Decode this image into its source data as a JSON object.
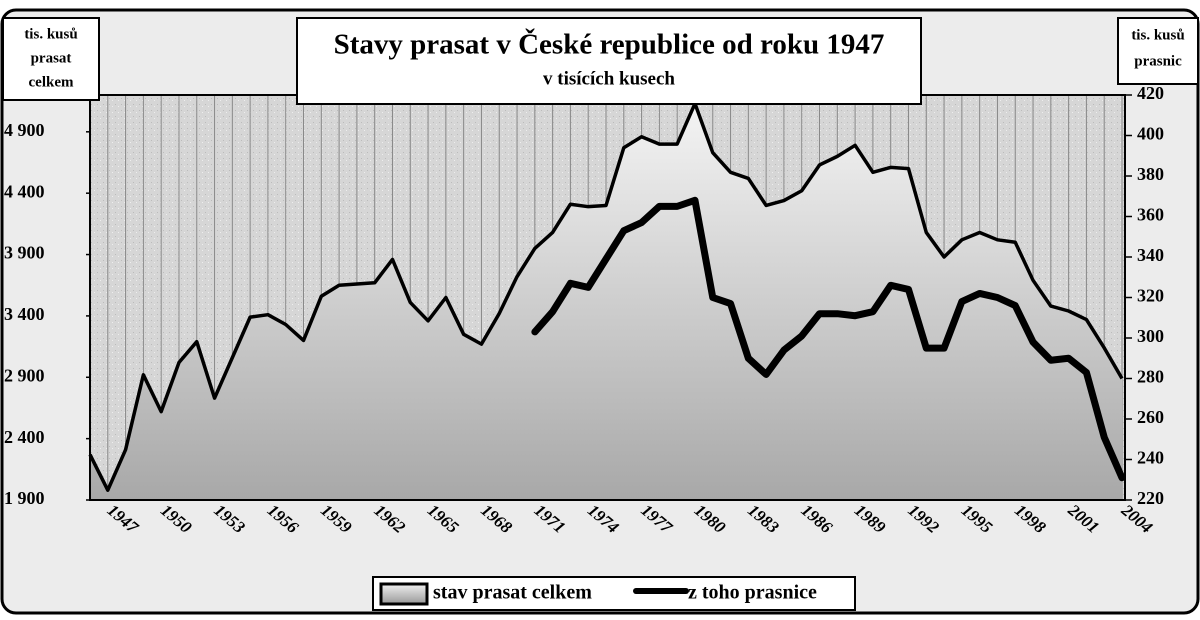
{
  "chart_data": {
    "type": "area_line",
    "title": "Stavy prasat v České republice od roku 1947",
    "subtitle": "v  tisících  kusech",
    "y_axis_label": [
      "tis. kusů",
      "prasat",
      "celkem"
    ],
    "y2_axis_label": [
      "tis. kusů",
      "prasnic"
    ],
    "categories": [
      null,
      "1947",
      null,
      null,
      "1950",
      null,
      null,
      "1953",
      null,
      null,
      "1956",
      null,
      null,
      "1959",
      null,
      null,
      "1962",
      null,
      null,
      "1965",
      null,
      null,
      "1968",
      null,
      null,
      "1971",
      null,
      null,
      "1974",
      null,
      null,
      "1977",
      null,
      null,
      "1980",
      null,
      null,
      "1983",
      null,
      null,
      "1986",
      null,
      null,
      "1989",
      null,
      null,
      "1992",
      null,
      null,
      "1995",
      null,
      null,
      "1998",
      null,
      null,
      "2001",
      null,
      null,
      "2004"
    ],
    "series": [
      {
        "name": "stav prasat celkem",
        "color": "#c8c8c8",
        "axis": "y",
        "values": [
          2270,
          1980,
          2310,
          2920,
          2620,
          3020,
          3190,
          2730,
          3060,
          3390,
          3410,
          3330,
          3200,
          3560,
          3650,
          3660,
          3670,
          3860,
          3510,
          3360,
          3550,
          3250,
          3170,
          3420,
          3720,
          3950,
          4080,
          4310,
          4290,
          4300,
          4770,
          4860,
          4800,
          4800,
          5130,
          4730,
          4570,
          4520,
          4300,
          4340,
          4420,
          4630,
          4700,
          4790,
          4570,
          4610,
          4600,
          4080,
          3880,
          4020,
          4080,
          4020,
          4000,
          3690,
          3480,
          3440,
          3370,
          3140,
          2890
        ]
      },
      {
        "name": "z toho prasnice",
        "color": "#000000",
        "axis": "y2",
        "values": [
          null,
          null,
          null,
          null,
          null,
          null,
          null,
          null,
          null,
          null,
          null,
          null,
          null,
          null,
          null,
          null,
          null,
          null,
          null,
          null,
          null,
          null,
          null,
          null,
          null,
          303,
          313,
          327,
          325,
          339,
          353,
          357,
          365,
          365,
          368,
          320,
          317,
          290,
          282,
          294,
          301,
          312,
          312,
          311,
          313,
          326,
          324,
          295,
          295,
          318,
          322,
          320,
          316,
          298,
          289,
          290,
          283,
          251,
          231
        ]
      }
    ],
    "ylim": [
      1900,
      5200
    ],
    "yticks": [
      {
        "value": 1900,
        "label": "1 900"
      },
      {
        "value": 2400,
        "label": "2 400"
      },
      {
        "value": 2900,
        "label": "2 900"
      },
      {
        "value": 3400,
        "label": "3 400"
      },
      {
        "value": 3900,
        "label": "3 900"
      },
      {
        "value": 4400,
        "label": "4 400"
      },
      {
        "value": 4900,
        "label": "4 900"
      }
    ],
    "y2lim": [
      220,
      420
    ],
    "y2ticks": [
      220,
      240,
      260,
      280,
      300,
      320,
      340,
      360,
      380,
      400,
      420
    ],
    "grid": true
  }
}
